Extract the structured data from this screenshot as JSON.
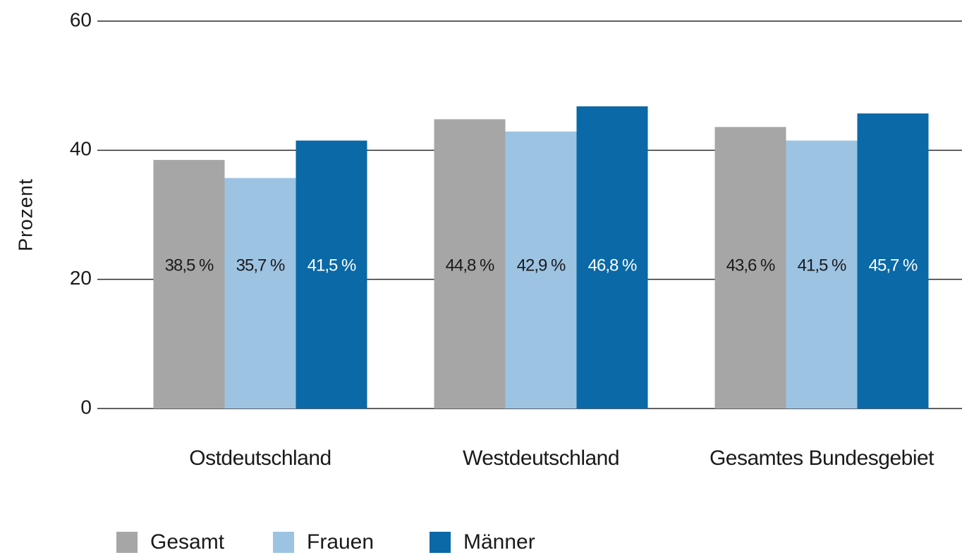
{
  "chart_data": {
    "type": "bar",
    "y_label": "Prozent",
    "categories": [
      "Ostdeutschland",
      "Westdeutschland",
      "Gesamtes Bundesgebiet"
    ],
    "series": [
      {
        "name": "Gesamt",
        "color": "#a6a6a6",
        "values": [
          38.5,
          44.8,
          43.6
        ],
        "value_labels": [
          "38,5 %",
          "44,8 %",
          "43,6 %"
        ]
      },
      {
        "name": "Frauen",
        "color": "#9dc3e3",
        "values": [
          35.7,
          42.9,
          41.5
        ],
        "value_labels": [
          "35,7 %",
          "42,9 %",
          "41,5 %"
        ]
      },
      {
        "name": "Männer",
        "color": "#0a69a6",
        "values": [
          41.5,
          46.8,
          45.7
        ],
        "value_labels": [
          "41,5 %",
          "46,8 %",
          "45,7 %"
        ]
      }
    ],
    "ylim": [
      0,
      60
    ],
    "yticks": [
      0,
      20,
      40,
      60
    ],
    "grid": true
  }
}
